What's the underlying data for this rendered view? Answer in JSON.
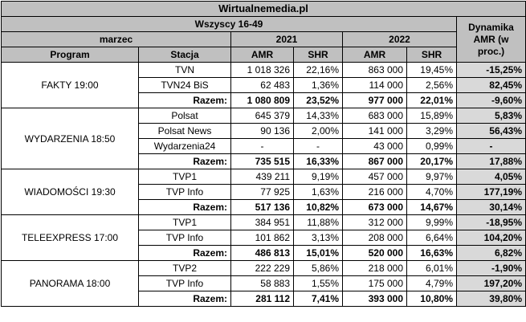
{
  "source": "Wirtualnemedia.pl",
  "audience": "Wszyscy 16-49",
  "month": "marzec",
  "years": [
    "2021",
    "2022"
  ],
  "dynamics_header": "Dynamika AMR (w proc.)",
  "col_headers": {
    "program": "Program",
    "station": "Stacja",
    "amr": "AMR",
    "shr": "SHR"
  },
  "groups": [
    {
      "program": "FAKTY 19:00",
      "rows": [
        {
          "station": "TVN",
          "amr2021": "1 018 326",
          "shr2021": "22,16%",
          "amr2022": "863 000",
          "shr2022": "19,45%",
          "dyn": "-15,25%"
        },
        {
          "station": "TVN24 BiS",
          "amr2021": "62 483",
          "shr2021": "1,36%",
          "amr2022": "114 000",
          "shr2022": "2,56%",
          "dyn": "82,45%"
        },
        {
          "station": "Razem:",
          "amr2021": "1 080 809",
          "shr2021": "23,52%",
          "amr2022": "977 000",
          "shr2022": "22,01%",
          "dyn": "-9,60%",
          "total": true
        }
      ]
    },
    {
      "program": "WYDARZENIA 18:50",
      "rows": [
        {
          "station": "Polsat",
          "amr2021": "645 379",
          "shr2021": "14,33%",
          "amr2022": "683 000",
          "shr2022": "15,89%",
          "dyn": "5,83%"
        },
        {
          "station": "Polsat News",
          "amr2021": "90 136",
          "shr2021": "2,00%",
          "amr2022": "141 000",
          "shr2022": "3,29%",
          "dyn": "56,43%"
        },
        {
          "station": "Wydarzenia24",
          "amr2021": "-",
          "shr2021": "-",
          "amr2022": "43 000",
          "shr2022": "0,99%",
          "dyn": "-"
        },
        {
          "station": "Razem:",
          "amr2021": "735 515",
          "shr2021": "16,33%",
          "amr2022": "867 000",
          "shr2022": "20,17%",
          "dyn": "17,88%",
          "total": true
        }
      ]
    },
    {
      "program": "WIADOMOŚCI 19:30",
      "rows": [
        {
          "station": "TVP1",
          "amr2021": "439 211",
          "shr2021": "9,19%",
          "amr2022": "457 000",
          "shr2022": "9,97%",
          "dyn": "4,05%"
        },
        {
          "station": "TVP Info",
          "amr2021": "77 925",
          "shr2021": "1,63%",
          "amr2022": "216 000",
          "shr2022": "4,70%",
          "dyn": "177,19%"
        },
        {
          "station": "Razem:",
          "amr2021": "517 136",
          "shr2021": "10,82%",
          "amr2022": "673 000",
          "shr2022": "14,67%",
          "dyn": "30,14%",
          "total": true
        }
      ]
    },
    {
      "program": "TELEEXPRESS 17:00",
      "rows": [
        {
          "station": "TVP1",
          "amr2021": "384 951",
          "shr2021": "11,88%",
          "amr2022": "312 000",
          "shr2022": "9,99%",
          "dyn": "-18,95%"
        },
        {
          "station": "TVP Info",
          "amr2021": "101 862",
          "shr2021": "3,13%",
          "amr2022": "208 000",
          "shr2022": "6,64%",
          "dyn": "104,20%"
        },
        {
          "station": "Razem:",
          "amr2021": "486 813",
          "shr2021": "15,01%",
          "amr2022": "520 000",
          "shr2022": "16,63%",
          "dyn": "6,82%",
          "total": true
        }
      ]
    },
    {
      "program": "PANORAMA 18:00",
      "rows": [
        {
          "station": "TVP2",
          "amr2021": "222 229",
          "shr2021": "5,86%",
          "amr2022": "218 000",
          "shr2022": "6,01%",
          "dyn": "-1,90%"
        },
        {
          "station": "TVP Info",
          "amr2021": "58 883",
          "shr2021": "1,55%",
          "amr2022": "175 000",
          "shr2022": "4,79%",
          "dyn": "197,20%"
        },
        {
          "station": "Razem:",
          "amr2021": "281 112",
          "shr2021": "7,41%",
          "amr2022": "393 000",
          "shr2022": "10,80%",
          "dyn": "39,80%",
          "total": true
        }
      ]
    }
  ]
}
